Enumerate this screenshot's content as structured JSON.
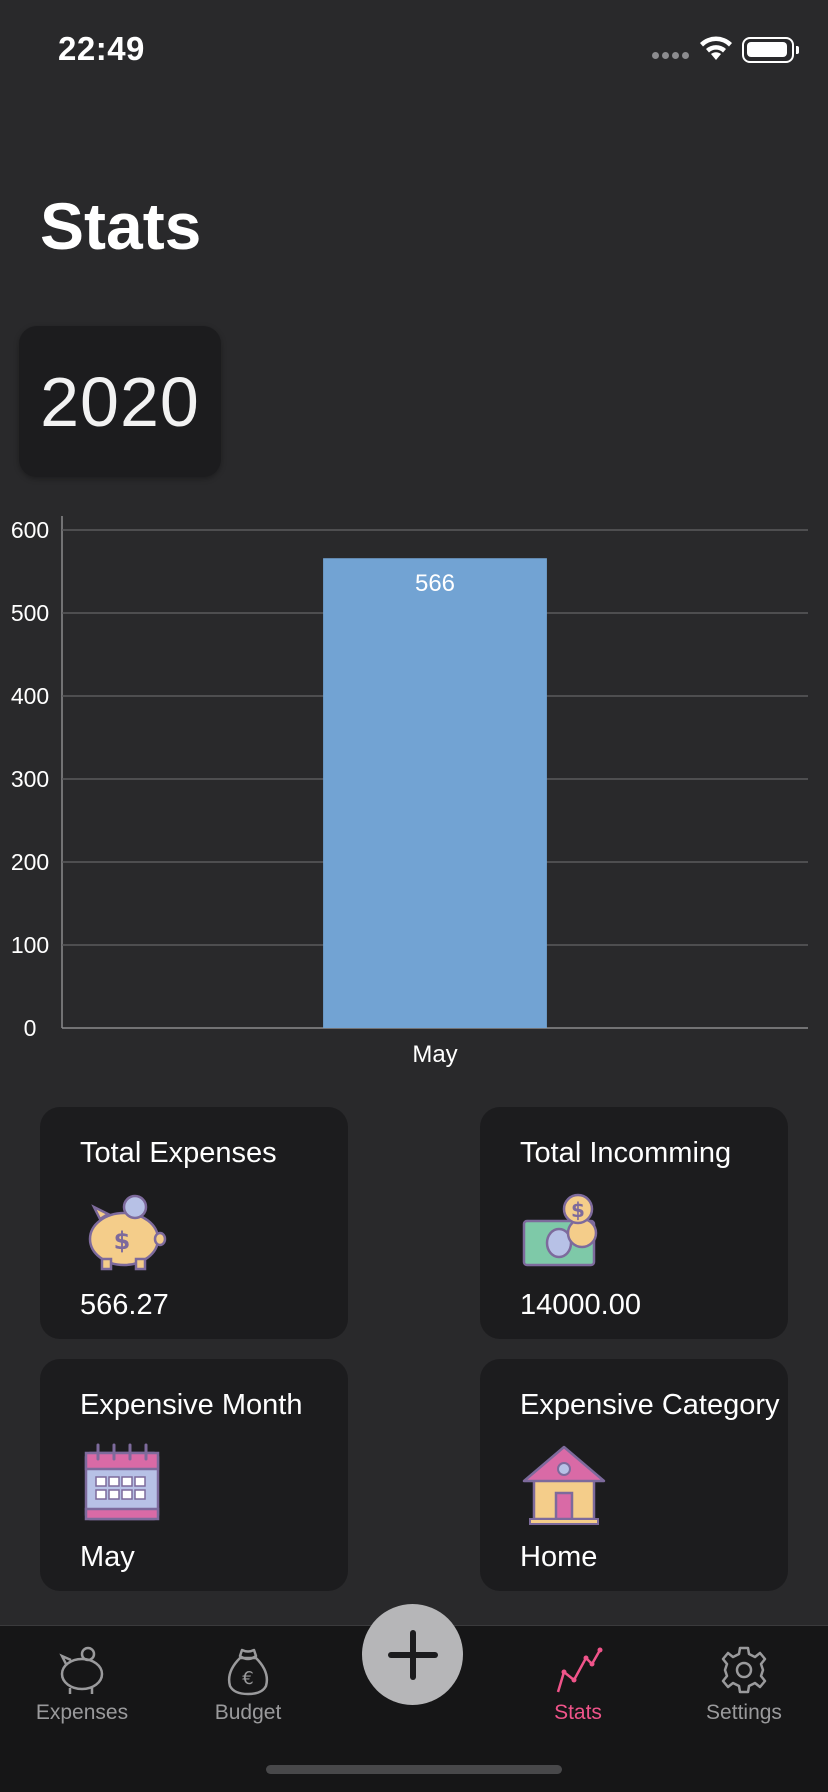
{
  "status_bar": {
    "time": "22:49"
  },
  "page": {
    "title": "Stats",
    "year": "2020"
  },
  "chart_data": {
    "type": "bar",
    "categories": [
      "May"
    ],
    "values": [
      566
    ],
    "data_labels": [
      "566"
    ],
    "ylim": [
      0,
      600
    ],
    "yticks": [
      0,
      100,
      200,
      300,
      400,
      500,
      600
    ],
    "grid": true,
    "bar_color": "#72a3d3"
  },
  "cards": [
    {
      "title": "Total Expenses",
      "value": "566.27",
      "icon": "piggy-bank-icon"
    },
    {
      "title": "Total Incomming",
      "value": "14000.00",
      "icon": "money-icon"
    },
    {
      "title": "Expensive Month",
      "value": "May",
      "icon": "calendar-icon"
    },
    {
      "title": "Expensive Category",
      "value": "Home",
      "icon": "house-icon"
    }
  ],
  "tabs": [
    {
      "label": "Expenses",
      "icon": "piggy-bank-icon"
    },
    {
      "label": "Budget",
      "icon": "money-bag-icon"
    },
    {
      "label": "Stats",
      "icon": "chart-line-icon",
      "active": true
    },
    {
      "label": "Settings",
      "icon": "gear-icon"
    }
  ],
  "colors": {
    "accent": "#f0548a",
    "background": "#29292b",
    "card": "#1c1c1e"
  }
}
